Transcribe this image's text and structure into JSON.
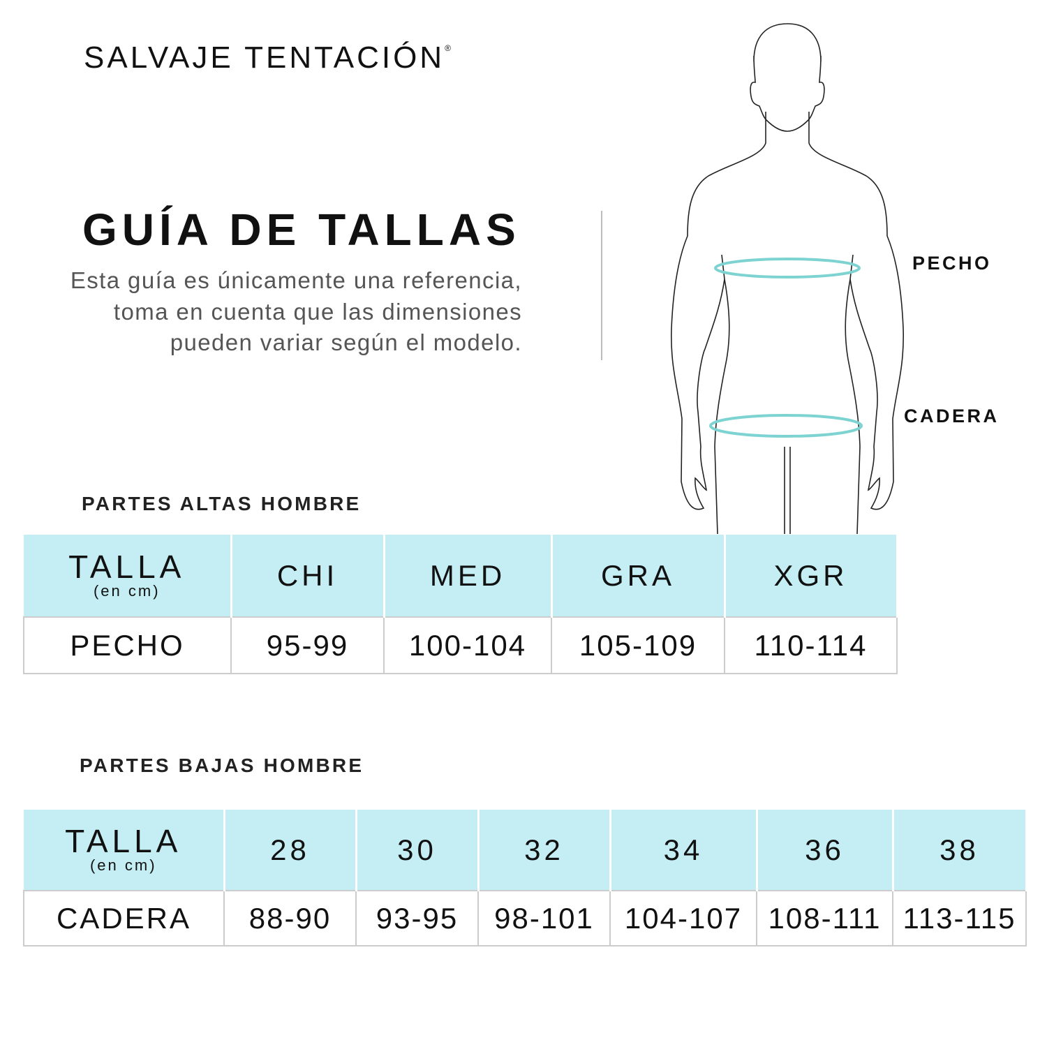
{
  "brand": {
    "name": "SALVAJE TENTACIÓN",
    "mark": "®"
  },
  "headline": "GUÍA DE TALLAS",
  "description": "Esta guía es únicamente una referencia, toma en cuenta que las dimensiones pueden variar según el modelo.",
  "figure": {
    "labels": {
      "chest": "PECHO",
      "hip": "CADERA"
    },
    "ring_color": "#7dd3d1"
  },
  "colors": {
    "header_bg": "#c4eef3",
    "border": "#cccccc"
  },
  "tops": {
    "title": "PARTES ALTAS HOMBRE",
    "header_label": "TALLA",
    "header_sub": "(en cm)",
    "sizes": [
      "CHI",
      "MED",
      "GRA",
      "XGR"
    ],
    "row_label": "PECHO",
    "values": [
      "95-99",
      "100-104",
      "105-109",
      "110-114"
    ]
  },
  "bottoms": {
    "title": "PARTES BAJAS HOMBRE",
    "header_label": "TALLA",
    "header_sub": "(en cm)",
    "sizes": [
      "28",
      "30",
      "32",
      "34",
      "36",
      "38"
    ],
    "row_label": "CADERA",
    "values": [
      "88-90",
      "93-95",
      "98-101",
      "104-107",
      "108-111",
      "113-115"
    ]
  }
}
